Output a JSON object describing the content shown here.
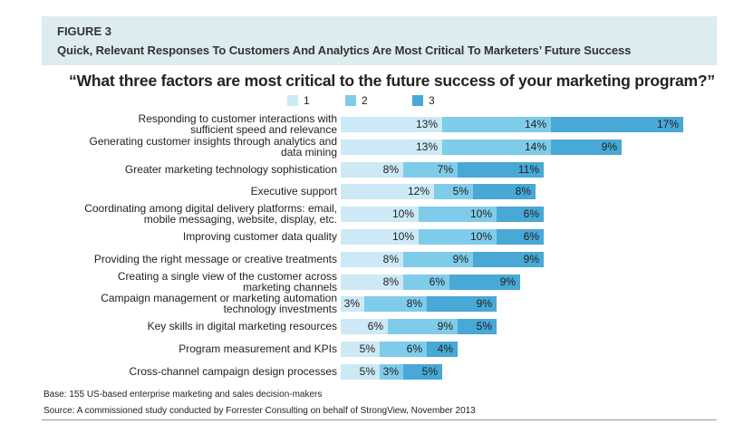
{
  "header": {
    "figure_number": "FIGURE 3",
    "figure_title": "Quick, Relevant Responses To Customers And Analytics Are Most Critical To Marketers’ Future Success"
  },
  "colors": {
    "header_bg": "#dcecef",
    "series_1": "#cce9f5",
    "series_2": "#7fcbea",
    "series_3": "#48a8d6"
  },
  "footer": {
    "base": "Base: 155 US-based enterprise marketing and sales decision-makers",
    "source": "Source: A commissioned study conducted by Forrester Consulting on behalf of StrongView, November 2013"
  },
  "chart_data": {
    "type": "bar",
    "orientation": "horizontal",
    "stacked": true,
    "title": "“What three factors are most critical to the future success of your marketing program?”",
    "xlabel": "",
    "ylabel": "",
    "unit": "%",
    "grid": false,
    "legend_position": "top-center",
    "legend": [
      "1",
      "2",
      "3"
    ],
    "categories": [
      "Responding to customer interactions with\nsufficient speed and relevance",
      "Generating customer insights through analytics and\ndata mining",
      "Greater marketing technology sophistication",
      "Executive support",
      "Coordinating among digital delivery platforms: email,\nmobile messaging, website, display, etc.",
      "Improving customer data quality",
      "Providing the right message or creative treatments",
      "Creating a single view of the customer across\nmarketing channels",
      "Campaign management or marketing automation\ntechnology investments",
      "Key skills in digital marketing resources",
      "Program measurement and KPIs",
      "Cross-channel campaign design processes"
    ],
    "series": [
      {
        "name": "1",
        "values": [
          13,
          13,
          8,
          12,
          10,
          10,
          8,
          8,
          3,
          6,
          5,
          5
        ]
      },
      {
        "name": "2",
        "values": [
          14,
          14,
          7,
          5,
          10,
          10,
          9,
          6,
          8,
          9,
          6,
          3
        ]
      },
      {
        "name": "3",
        "values": [
          17,
          9,
          11,
          8,
          6,
          6,
          9,
          9,
          9,
          5,
          4,
          5
        ]
      }
    ]
  }
}
